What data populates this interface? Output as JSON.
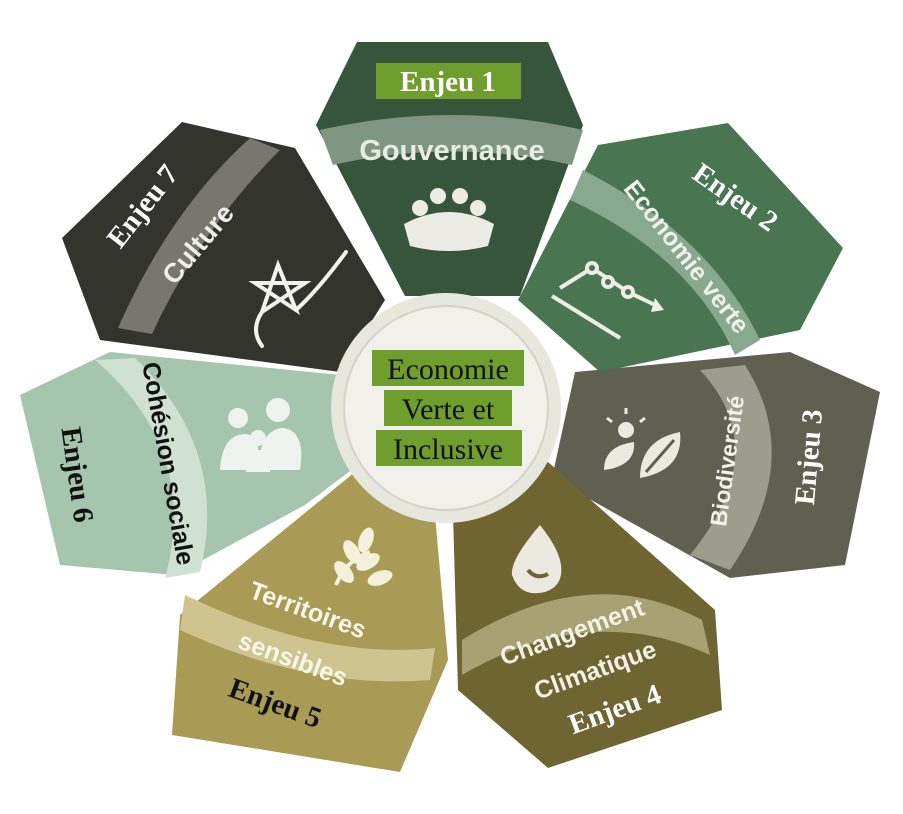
{
  "center": {
    "lines": [
      "Economie",
      "Verte et",
      "Inclusive"
    ]
  },
  "petals": [
    {
      "id": "gouvernance",
      "enjeu": "Enjeu 1",
      "theme": "Gouvernance",
      "icon": "meeting-table-icon",
      "color": "#36553a",
      "band": "#7e9682"
    },
    {
      "id": "economie-verte",
      "enjeu": "Enjeu 2",
      "theme": "Economie verte",
      "icon": "growth-chart-icon",
      "color": "#4a7551",
      "band": "#89a98e"
    },
    {
      "id": "biodiversite",
      "enjeu": "Enjeu 3",
      "theme": "Biodiversité",
      "icon": "sun-leaf-icon",
      "color": "#5f6050",
      "band": "#9d9d8d"
    },
    {
      "id": "changement-climatique",
      "enjeu": "Enjeu 4",
      "theme_lines": [
        "Changement",
        "Climatique"
      ],
      "icon": "water-drop-icon",
      "color": "#6e6532",
      "band": "#a8a174"
    },
    {
      "id": "territoires-sensibles",
      "enjeu": "Enjeu 5",
      "theme_lines": [
        "Territoires",
        "sensibles"
      ],
      "icon": "wheat-icon",
      "color": "#a99b55",
      "band": "#cfc48f"
    },
    {
      "id": "cohesion-sociale",
      "enjeu": "Enjeu 6",
      "theme": "Cohésion sociale",
      "icon": "family-icon",
      "color": "#a6c5ae",
      "band": "#cfe1d3"
    },
    {
      "id": "culture",
      "enjeu": "Enjeu 7",
      "theme": "Culture",
      "icon": "star-calligraphy-icon",
      "color": "#34342e",
      "band": "#77776f"
    }
  ]
}
